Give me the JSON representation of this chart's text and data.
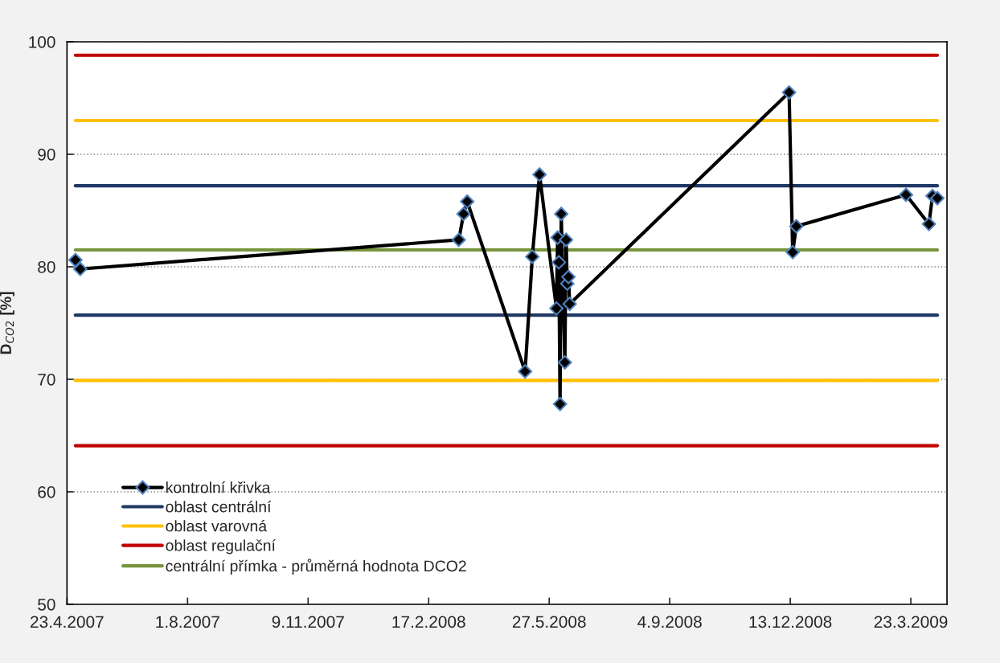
{
  "chart_data": {
    "type": "line",
    "ylabel": "D$_{CO2}$ [%]",
    "xlim": [
      "2007-04-23",
      "2009-04-22"
    ],
    "ylim": [
      50,
      100
    ],
    "yticks": [
      50,
      60,
      70,
      80,
      90,
      100
    ],
    "xticks": [
      {
        "value": "2007-04-23",
        "label": "23.4.2007"
      },
      {
        "value": "2007-08-01",
        "label": "1.8.2007"
      },
      {
        "value": "2007-11-09",
        "label": "9.11.2007"
      },
      {
        "value": "2008-02-17",
        "label": "17.2.2008"
      },
      {
        "value": "2008-05-27",
        "label": "27.5.2008"
      },
      {
        "value": "2008-09-04",
        "label": "4.9.2008"
      },
      {
        "value": "2008-12-13",
        "label": "13.12.2008"
      },
      {
        "value": "2009-03-23",
        "label": "23.3.2009"
      }
    ],
    "grid": "y",
    "legend": "bottom left",
    "series": [
      {
        "name": "kontrolní křivka",
        "color": "#000000",
        "marker": "diamond",
        "x": [
          "2007-04-30",
          "2007-05-04",
          "2008-03-13",
          "2008-03-17",
          "2008-03-20",
          "2008-05-07",
          "2008-05-13",
          "2008-05-19",
          "2008-06-02",
          "2008-06-03",
          "2008-06-04",
          "2008-06-05",
          "2008-06-06",
          "2008-06-09",
          "2008-06-10",
          "2008-06-11",
          "2008-06-12",
          "2008-06-13",
          "2008-12-12",
          "2008-12-15",
          "2008-12-18",
          "2009-03-19",
          "2009-04-07",
          "2009-04-10",
          "2009-04-14"
        ],
        "values": [
          80.6,
          79.8,
          82.4,
          84.7,
          85.8,
          70.7,
          80.9,
          88.2,
          76.3,
          82.6,
          80.4,
          67.8,
          84.7,
          71.5,
          82.4,
          78.5,
          79.1,
          76.7,
          95.5,
          81.3,
          83.6,
          86.4,
          83.8,
          86.3,
          86.1
        ]
      },
      {
        "name": "oblast centrální",
        "color": "#1f3864",
        "x": [
          "2007-04-30",
          "2009-04-14"
        ],
        "values": [
          87.2,
          87.2
        ]
      },
      {
        "name": "oblast varovná",
        "color": "#ffc000",
        "x": [
          "2007-04-30",
          "2009-04-14"
        ],
        "values": [
          93.0,
          93.0
        ]
      },
      {
        "name": "oblast regulační",
        "color": "#c00000",
        "x": [
          "2007-04-30",
          "2009-04-14"
        ],
        "values": [
          98.8,
          98.8
        ]
      },
      {
        "color": "#1f3864",
        "x": [
          "2007-04-30",
          "2009-04-14"
        ],
        "values": [
          75.7,
          75.7
        ]
      },
      {
        "color": "#ffc000",
        "x": [
          "2007-04-30",
          "2009-04-14"
        ],
        "values": [
          69.9,
          69.9
        ]
      },
      {
        "color": "#c00000",
        "x": [
          "2007-04-30",
          "2009-04-14"
        ],
        "values": [
          64.1,
          64.1
        ]
      },
      {
        "name": "centrální přímka - průměrná hodnota DCO2",
        "color": "#77933c",
        "x": [
          "2007-04-30",
          "2009-04-14"
        ],
        "values": [
          81.5,
          81.5
        ]
      }
    ]
  }
}
